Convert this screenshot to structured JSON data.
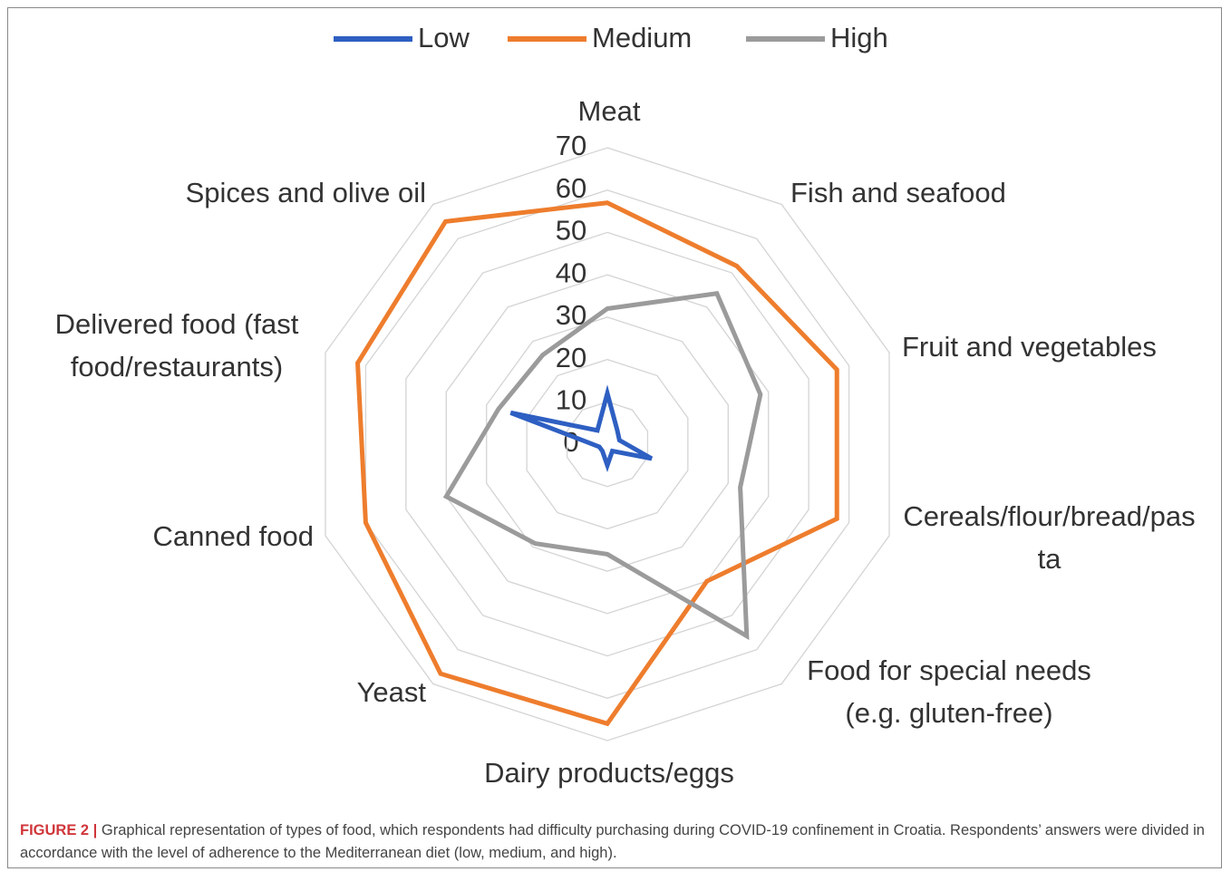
{
  "chart_data": {
    "type": "radar",
    "categories": [
      "Meat",
      "Fish and seafood",
      "Fruit and vegetables",
      "Cereals/flour/bread/pasta",
      "Food for special needs (e.g. gluten-free)",
      "Dairy products/eggs",
      "Yeast",
      "Canned food",
      "Delivered food (fast food/restaurants)",
      "Spices and olive oil"
    ],
    "series": [
      {
        "name": "Low",
        "color": "#2e5fc2",
        "values": [
          12,
          4,
          3,
          11,
          2,
          5,
          2,
          2,
          24,
          4
        ]
      },
      {
        "name": "Medium",
        "color": "#ee7d2d",
        "values": [
          57,
          52,
          57,
          57,
          40,
          66,
          67,
          60,
          62,
          65
        ]
      },
      {
        "name": "High",
        "color": "#9b9b9b",
        "values": [
          32,
          44,
          38,
          33,
          56,
          26,
          29,
          40,
          27,
          26
        ]
      }
    ],
    "ylim": [
      0,
      70
    ],
    "yticks": [
      0,
      10,
      20,
      30,
      40,
      50,
      60,
      70
    ],
    "grid": true,
    "legend": "top",
    "caption_label": "FIGURE 2 |",
    "caption": "Graphical representation of types of food, which respondents had difficulty purchasing during COVID-19 confinement in Croatia. Respondents’ answers were divided in accordance with the level of adherence to the Mediterranean diet (low, medium, and high)."
  }
}
